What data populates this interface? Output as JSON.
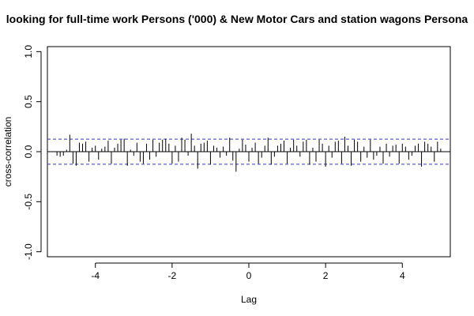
{
  "chart_data": {
    "type": "bar",
    "title": "looking for full-time work Persons ('000) & New Motor Cars and station wagons Persona",
    "xlabel": "Lag",
    "ylabel": "cross-correlation",
    "xlim": [
      -5.25,
      5.25
    ],
    "ylim": [
      -1.05,
      1.05
    ],
    "xticks": [
      -4,
      -2,
      0,
      2,
      4
    ],
    "xtick_labels": [
      "-4",
      "-2",
      "0",
      "2",
      "4"
    ],
    "yticks": [
      -1.0,
      -0.5,
      0.0,
      0.5,
      1.0
    ],
    "ytick_labels": [
      "-1.0",
      "-0.5",
      "0.0",
      "0.5",
      "1.0"
    ],
    "confidence_bounds": [
      0.125,
      -0.125
    ],
    "colors": {
      "bars": "#000000",
      "bounds": "#3333cc",
      "zero_line": "#000000"
    },
    "lag_step": 0.0833333,
    "lag_start": -5.0,
    "values": [
      -0.04,
      -0.05,
      -0.04,
      0.02,
      0.17,
      -0.12,
      -0.14,
      0.09,
      0.08,
      0.1,
      -0.1,
      0.04,
      0.06,
      -0.08,
      0.03,
      0.05,
      0.11,
      -0.12,
      0.04,
      0.08,
      0.12,
      0.13,
      -0.14,
      0.02,
      -0.04,
      0.09,
      -0.1,
      -0.12,
      0.08,
      -0.08,
      0.12,
      -0.05,
      0.09,
      0.12,
      0.13,
      0.08,
      -0.12,
      0.06,
      -0.1,
      0.14,
      0.12,
      -0.04,
      0.18,
      0.06,
      -0.17,
      0.08,
      0.09,
      0.11,
      -0.13,
      0.06,
      0.04,
      -0.06,
      0.05,
      -0.04,
      0.14,
      -0.09,
      -0.2,
      0.03,
      0.12,
      0.07,
      -0.1,
      0.04,
      0.09,
      -0.12,
      -0.06,
      0.06,
      0.14,
      -0.13,
      -0.05,
      0.06,
      0.08,
      0.11,
      -0.12,
      0.04,
      0.12,
      0.06,
      -0.05,
      0.1,
      0.12,
      -0.13,
      0.04,
      -0.1,
      0.12,
      0.08,
      -0.15,
      0.06,
      -0.06,
      0.1,
      0.11,
      -0.12,
      0.15,
      0.06,
      -0.14,
      0.12,
      0.1,
      -0.1,
      0.05,
      -0.06,
      0.12,
      -0.08,
      -0.04,
      0.05,
      -0.12,
      0.08,
      -0.05,
      0.06,
      0.07,
      -0.12,
      0.08,
      0.05,
      -0.08,
      -0.04,
      0.06,
      0.08,
      -0.15,
      0.1,
      0.08,
      0.05,
      -0.1,
      0.1,
      0.03
    ]
  }
}
